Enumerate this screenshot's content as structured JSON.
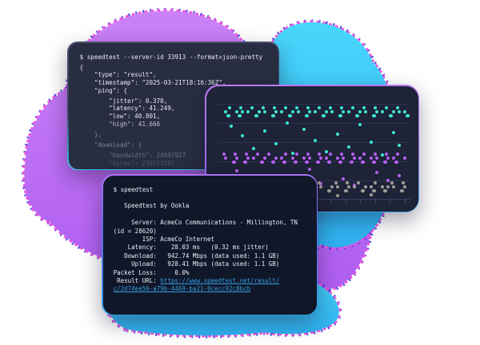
{
  "colors": {
    "page_bg": "#ffffff",
    "cloud_purple_fill_light": "#cb82f8",
    "cloud_purple_fill": "#ae5df0",
    "cloud_cyan_fill_light": "#49d6fb",
    "cloud_cyan_fill": "#2fb0f0",
    "cloud_edge_pink": "#f052dc",
    "cloud_edge_blue": "#3c2fe0",
    "terminal_json_bg": "#282d42",
    "dots_panel_bg": "#1e2337",
    "terminal_result_bg": "#101729",
    "terminal_text": "#e9ebf5",
    "link_blue": "#36a0e4",
    "dot_teal": "#3fe6d5",
    "dot_purple": "#b75ff2",
    "dot_gray": "#a19d97",
    "gridline": "#2c3254"
  },
  "terminal_json": {
    "lines": [
      {
        "text": "$ speedtest --server-id 33913 --format=json-pretty",
        "opacity": 1,
        "gap": false
      },
      {
        "text": "{",
        "opacity": 1,
        "gap": true
      },
      {
        "text": "    \"type\": \"result\",",
        "opacity": 1,
        "gap": false
      },
      {
        "text": "    \"timestamp\": \"2025-03-21T18:16:36Z\",",
        "opacity": 1,
        "gap": false
      },
      {
        "text": "    \"ping\": {",
        "opacity": 1,
        "gap": false
      },
      {
        "text": "        \"jitter\": 0.370,",
        "opacity": 1,
        "gap": true
      },
      {
        "text": "        \"latency\": 41.249,",
        "opacity": 1,
        "gap": false
      },
      {
        "text": "        \"low\": 40.801,",
        "opacity": 1,
        "gap": false
      },
      {
        "text": "        \"high\": 41.666",
        "opacity": 0.8,
        "gap": false
      },
      {
        "text": "    },",
        "opacity": 0.5,
        "gap": true
      },
      {
        "text": "    \"download\": {",
        "opacity": 0.45,
        "gap": true
      },
      {
        "text": "        \"bandwidth\": 24097927",
        "opacity": 0.32,
        "gap": true
      },
      {
        "text": "        \"bytes\": 239152592",
        "opacity": 0.2,
        "gap": false
      }
    ]
  },
  "terminal_result": {
    "lines": [
      [
        {
          "t": "$ speedtest"
        }
      ],
      [
        {
          "t": ""
        }
      ],
      [
        {
          "t": "   Speedtest by Ookla"
        }
      ],
      [
        {
          "t": ""
        }
      ],
      [
        {
          "t": "     Server: AcmeCo Communications - Millington, TN"
        }
      ],
      [
        {
          "t": "(id = 28620)"
        }
      ],
      [
        {
          "t": "        ISP: AcmeCo Internet"
        }
      ],
      [
        {
          "t": "    Latency:    28.03 ms   (0.32 ms jitter)"
        }
      ],
      [
        {
          "t": "   Download:   942.74 Mbps (data used: 1.1 GB)"
        }
      ],
      [
        {
          "t": "     Upload:   928.41 Mbps (data used: 1.1 GB)"
        }
      ],
      [
        {
          "t": "Packet Loss:     0.0%"
        }
      ],
      [
        {
          "t": " Result URL: "
        },
        {
          "t": "https://www.speedtest.net/result/",
          "link": true
        }
      ],
      [
        {
          "t": "c/2d74ee56-a79b-4469-ba21-0cecc92c8bcb",
          "link": true
        }
      ]
    ]
  },
  "chart_data": {
    "type": "scatter",
    "title": "",
    "xlabel": "",
    "ylabel": "",
    "grid": true,
    "gridline_rel_y": [
      22,
      46,
      70,
      94,
      118
    ],
    "axis_rel_y": 141,
    "tick_count": 13,
    "x0": 22,
    "x_step": 7,
    "dy_step": 5,
    "series": [
      {
        "name": "teal",
        "color": "#3fe6d5",
        "baseline_rel_y": 30,
        "band": [
          [
            0,
            0
          ],
          [
            0,
            1
          ],
          [
            1,
            -1
          ],
          [
            2,
            0
          ],
          [
            2,
            1
          ],
          [
            3,
            -1
          ],
          [
            3,
            0
          ],
          [
            4,
            0
          ],
          [
            5,
            -1
          ],
          [
            5,
            1
          ],
          [
            6,
            0
          ],
          [
            7,
            0
          ],
          [
            7,
            -1
          ],
          [
            8,
            1
          ],
          [
            9,
            -1
          ],
          [
            9,
            0
          ],
          [
            10,
            0
          ],
          [
            11,
            -1
          ],
          [
            11,
            1
          ],
          [
            12,
            0
          ],
          [
            13,
            -1
          ],
          [
            13,
            0
          ],
          [
            14,
            1
          ],
          [
            15,
            0
          ],
          [
            15,
            -1
          ],
          [
            16,
            0
          ],
          [
            17,
            -1
          ],
          [
            17,
            1
          ],
          [
            18,
            0
          ],
          [
            19,
            -1
          ],
          [
            19,
            0
          ],
          [
            20,
            1
          ],
          [
            21,
            0
          ],
          [
            21,
            -1
          ],
          [
            22,
            0
          ],
          [
            23,
            -1
          ],
          [
            23,
            1
          ],
          [
            24,
            0
          ],
          [
            25,
            -1
          ],
          [
            25,
            0
          ],
          [
            26,
            1
          ],
          [
            27,
            0
          ],
          [
            27,
            -1
          ],
          [
            28,
            0
          ],
          [
            29,
            -1
          ],
          [
            29,
            1
          ],
          [
            30,
            0
          ],
          [
            31,
            -1
          ],
          [
            31,
            0
          ],
          [
            32,
            1
          ],
          [
            32,
            0
          ]
        ],
        "outliers": [
          [
            1,
            18
          ],
          [
            3,
            30
          ],
          [
            5,
            46
          ],
          [
            7,
            24
          ],
          [
            9,
            40
          ],
          [
            11,
            14
          ],
          [
            12,
            52
          ],
          [
            14,
            22
          ],
          [
            16,
            36
          ],
          [
            18,
            50
          ],
          [
            20,
            28
          ],
          [
            22,
            44
          ],
          [
            24,
            16
          ],
          [
            26,
            38
          ],
          [
            28,
            54
          ],
          [
            30,
            26
          ],
          [
            31,
            42
          ]
        ]
      },
      {
        "name": "purple",
        "color": "#b75ff2",
        "baseline_rel_y": 88,
        "band": [
          [
            0,
            -1
          ],
          [
            0,
            0
          ],
          [
            1,
            1
          ],
          [
            2,
            -1
          ],
          [
            2,
            0
          ],
          [
            3,
            1
          ],
          [
            4,
            0
          ],
          [
            4,
            -1
          ],
          [
            5,
            0
          ],
          [
            6,
            1
          ],
          [
            6,
            -1
          ],
          [
            7,
            0
          ],
          [
            8,
            -1
          ],
          [
            8,
            1
          ],
          [
            9,
            0
          ],
          [
            10,
            0
          ],
          [
            10,
            1
          ],
          [
            11,
            -1
          ],
          [
            12,
            0
          ],
          [
            12,
            1
          ],
          [
            13,
            -1
          ],
          [
            14,
            0
          ],
          [
            14,
            1
          ],
          [
            15,
            -1
          ],
          [
            15,
            0
          ],
          [
            16,
            1
          ],
          [
            17,
            0
          ],
          [
            17,
            -1
          ],
          [
            18,
            0
          ],
          [
            18,
            1
          ],
          [
            19,
            -1
          ],
          [
            20,
            0
          ],
          [
            20,
            1
          ],
          [
            21,
            -1
          ],
          [
            21,
            0
          ],
          [
            22,
            1
          ],
          [
            23,
            0
          ],
          [
            23,
            -1
          ],
          [
            24,
            1
          ],
          [
            24,
            0
          ],
          [
            25,
            -1
          ],
          [
            26,
            0
          ],
          [
            26,
            1
          ],
          [
            27,
            -1
          ],
          [
            27,
            0
          ],
          [
            28,
            1
          ],
          [
            29,
            0
          ],
          [
            29,
            -1
          ],
          [
            30,
            0
          ],
          [
            30,
            1
          ],
          [
            31,
            -1
          ],
          [
            32,
            0
          ]
        ],
        "outliers": [
          [
            2,
            16
          ],
          [
            4,
            28
          ],
          [
            6,
            34
          ],
          [
            10,
            22
          ],
          [
            13,
            30
          ],
          [
            15,
            14
          ],
          [
            17,
            32
          ],
          [
            21,
            26
          ],
          [
            23,
            34
          ],
          [
            27,
            18
          ],
          [
            29,
            28
          ],
          [
            31,
            22
          ]
        ]
      },
      {
        "name": "gray",
        "color": "#a19d97",
        "baseline_rel_y": 124,
        "band": [
          [
            0,
            0
          ],
          [
            1,
            -1
          ],
          [
            1,
            1
          ],
          [
            2,
            0
          ],
          [
            3,
            1
          ],
          [
            4,
            -1
          ],
          [
            4,
            0
          ],
          [
            5,
            1
          ],
          [
            6,
            0
          ],
          [
            7,
            -1
          ],
          [
            7,
            0
          ],
          [
            8,
            1
          ],
          [
            9,
            0
          ],
          [
            10,
            -1
          ],
          [
            10,
            1
          ],
          [
            11,
            0
          ],
          [
            12,
            -1
          ],
          [
            12,
            0
          ],
          [
            13,
            1
          ],
          [
            14,
            0
          ],
          [
            15,
            -1
          ],
          [
            15,
            1
          ],
          [
            16,
            0
          ],
          [
            17,
            0
          ],
          [
            17,
            -1
          ],
          [
            18,
            1
          ],
          [
            19,
            0
          ],
          [
            20,
            -1
          ],
          [
            20,
            0
          ],
          [
            21,
            1
          ],
          [
            22,
            0
          ],
          [
            22,
            -1
          ],
          [
            23,
            0
          ],
          [
            24,
            1
          ],
          [
            24,
            -1
          ],
          [
            25,
            0
          ],
          [
            26,
            1
          ],
          [
            26,
            0
          ],
          [
            27,
            -1
          ],
          [
            28,
            0
          ],
          [
            28,
            1
          ],
          [
            29,
            0
          ],
          [
            30,
            -1
          ],
          [
            30,
            0
          ],
          [
            31,
            1
          ],
          [
            32,
            0
          ],
          [
            32,
            -1
          ]
        ],
        "outliers": [
          [
            3,
            10
          ],
          [
            8,
            12
          ],
          [
            14,
            10
          ],
          [
            20,
            11
          ],
          [
            26,
            10
          ]
        ]
      }
    ]
  }
}
